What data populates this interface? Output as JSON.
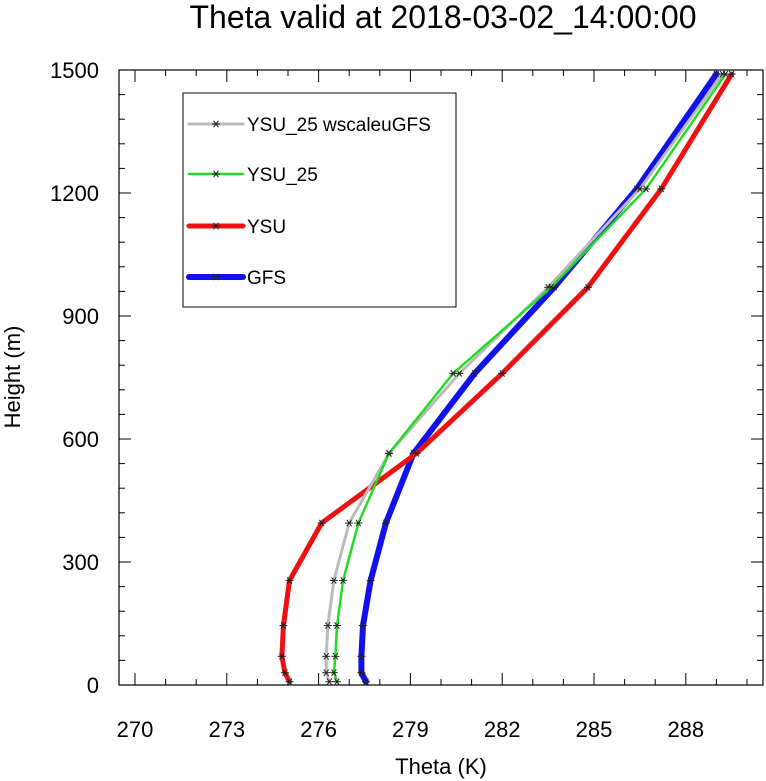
{
  "chart_data": {
    "type": "line",
    "title": "Theta valid at 2018-03-02_14:00:00",
    "xlabel": "Theta (K)",
    "ylabel": "Height (m)",
    "xlim": [
      270,
      290
    ],
    "ylim": [
      0,
      1500
    ],
    "xticks": [
      "270",
      "273",
      "276",
      "279",
      "282",
      "285",
      "288"
    ],
    "yticks": [
      "0",
      "300",
      "600",
      "900",
      "1200",
      "1500"
    ],
    "legend_position": "top-left",
    "heights": [
      8,
      30,
      70,
      145,
      255,
      395,
      565,
      760,
      970,
      1210,
      1490
    ],
    "series": [
      {
        "name": "YSU_25 wscaleuGFS",
        "color": "#bbbbbb",
        "width": 3,
        "values": [
          276.35,
          276.25,
          276.25,
          276.3,
          276.5,
          277.0,
          278.3,
          280.6,
          283.5,
          286.5,
          289.2
        ]
      },
      {
        "name": "YSU_25",
        "color": "#22dd22",
        "width": 2.5,
        "values": [
          276.6,
          276.5,
          276.55,
          276.6,
          276.8,
          277.3,
          278.3,
          280.4,
          283.6,
          286.7,
          289.3
        ]
      },
      {
        "name": "YSU",
        "color": "#ee1111",
        "width": 5,
        "values": [
          275.05,
          274.9,
          274.8,
          274.85,
          275.05,
          276.1,
          279.2,
          282.0,
          284.8,
          287.2,
          289.5
        ]
      },
      {
        "name": "GFS",
        "color": "#1111ee",
        "width": 6,
        "values": [
          277.55,
          277.4,
          277.4,
          277.45,
          277.7,
          278.2,
          279.1,
          281.1,
          283.7,
          286.4,
          289.0
        ]
      }
    ]
  }
}
